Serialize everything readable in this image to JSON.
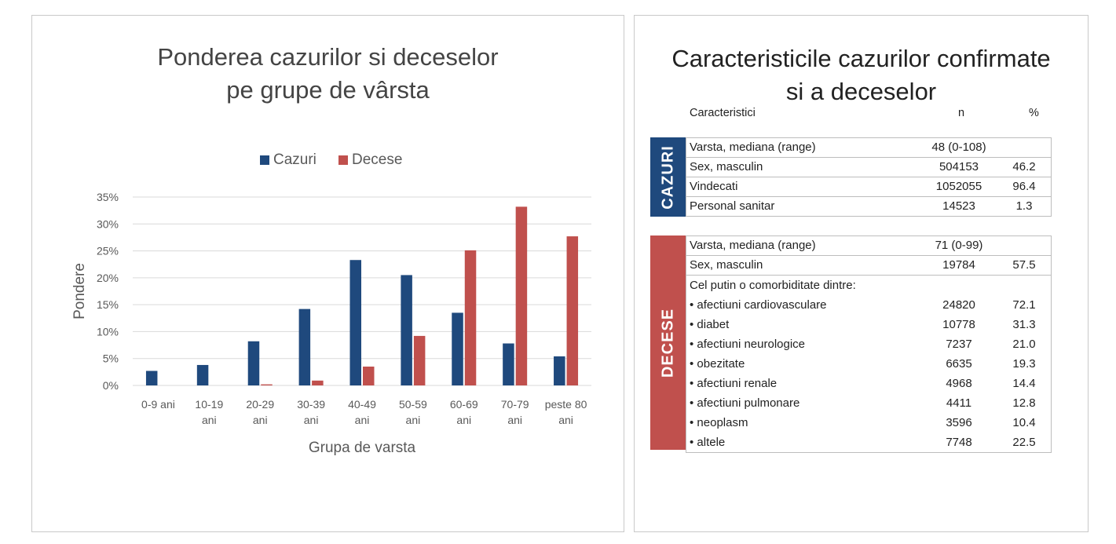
{
  "chart": {
    "title_line1": "Ponderea cazurilor si deceselor",
    "title_line2": "pe grupe de vârsta"
  },
  "chart_data": {
    "type": "bar",
    "categories": [
      "0-9 ani",
      "10-19 ani",
      "20-29 ani",
      "30-39 ani",
      "40-49 ani",
      "50-59 ani",
      "60-69 ani",
      "70-79 ani",
      "peste 80 ani"
    ],
    "series": [
      {
        "name": "Cazuri",
        "color": "#1f497d",
        "values": [
          2.7,
          3.8,
          8.2,
          14.2,
          23.3,
          20.5,
          13.5,
          7.8,
          5.4
        ]
      },
      {
        "name": "Decese",
        "color": "#c0504d",
        "values": [
          0.0,
          0.0,
          0.2,
          0.9,
          3.5,
          9.2,
          25.1,
          33.2,
          27.7
        ]
      }
    ],
    "xlabel": "Grupa de varsta",
    "ylabel": "Pondere",
    "ylim": [
      0,
      35
    ],
    "yticks": [
      "0%",
      "5%",
      "10%",
      "15%",
      "20%",
      "25%",
      "30%",
      "35%"
    ],
    "grid": true,
    "legend_position": "top"
  },
  "table_panel": {
    "title_line1": "Caracteristicile cazurilor confirmate",
    "title_line2": "si a deceselor",
    "headers": {
      "c1": "Caracteristici",
      "c2": "n",
      "c3": "%"
    },
    "cazuri": {
      "label": "CAZURI",
      "color": "#1f497d",
      "rows": [
        {
          "name": "Varsta, mediana (range)",
          "n": "48 (0-108)",
          "pct": ""
        },
        {
          "name": "Sex, masculin",
          "n": "504153",
          "pct": "46.2"
        },
        {
          "name": "Vindecati",
          "n": "1052055",
          "pct": "96.4"
        },
        {
          "name": "Personal sanitar",
          "n": "14523",
          "pct": "1.3"
        }
      ]
    },
    "decese": {
      "label": "DECESE",
      "color": "#c0504d",
      "rows": [
        {
          "name": "Varsta, mediana (range)",
          "n": "71 (0-99)",
          "pct": ""
        },
        {
          "name": "Sex, masculin",
          "n": "19784",
          "pct": "57.5"
        },
        {
          "name": "Cel putin o comorbiditate dintre:",
          "n": "",
          "pct": ""
        },
        {
          "name": "• afectiuni cardiovasculare",
          "n": "24820",
          "pct": "72.1"
        },
        {
          "name": "• diabet",
          "n": "10778",
          "pct": "31.3"
        },
        {
          "name": "• afectiuni neurologice",
          "n": "7237",
          "pct": "21.0"
        },
        {
          "name": "• obezitate",
          "n": "6635",
          "pct": "19.3"
        },
        {
          "name": "• afectiuni renale",
          "n": "4968",
          "pct": "14.4"
        },
        {
          "name": "• afectiuni pulmonare",
          "n": "4411",
          "pct": "12.8"
        },
        {
          "name": "• neoplasm",
          "n": "3596",
          "pct": "10.4"
        },
        {
          "name": "• altele",
          "n": "7748",
          "pct": "22.5"
        }
      ]
    }
  }
}
